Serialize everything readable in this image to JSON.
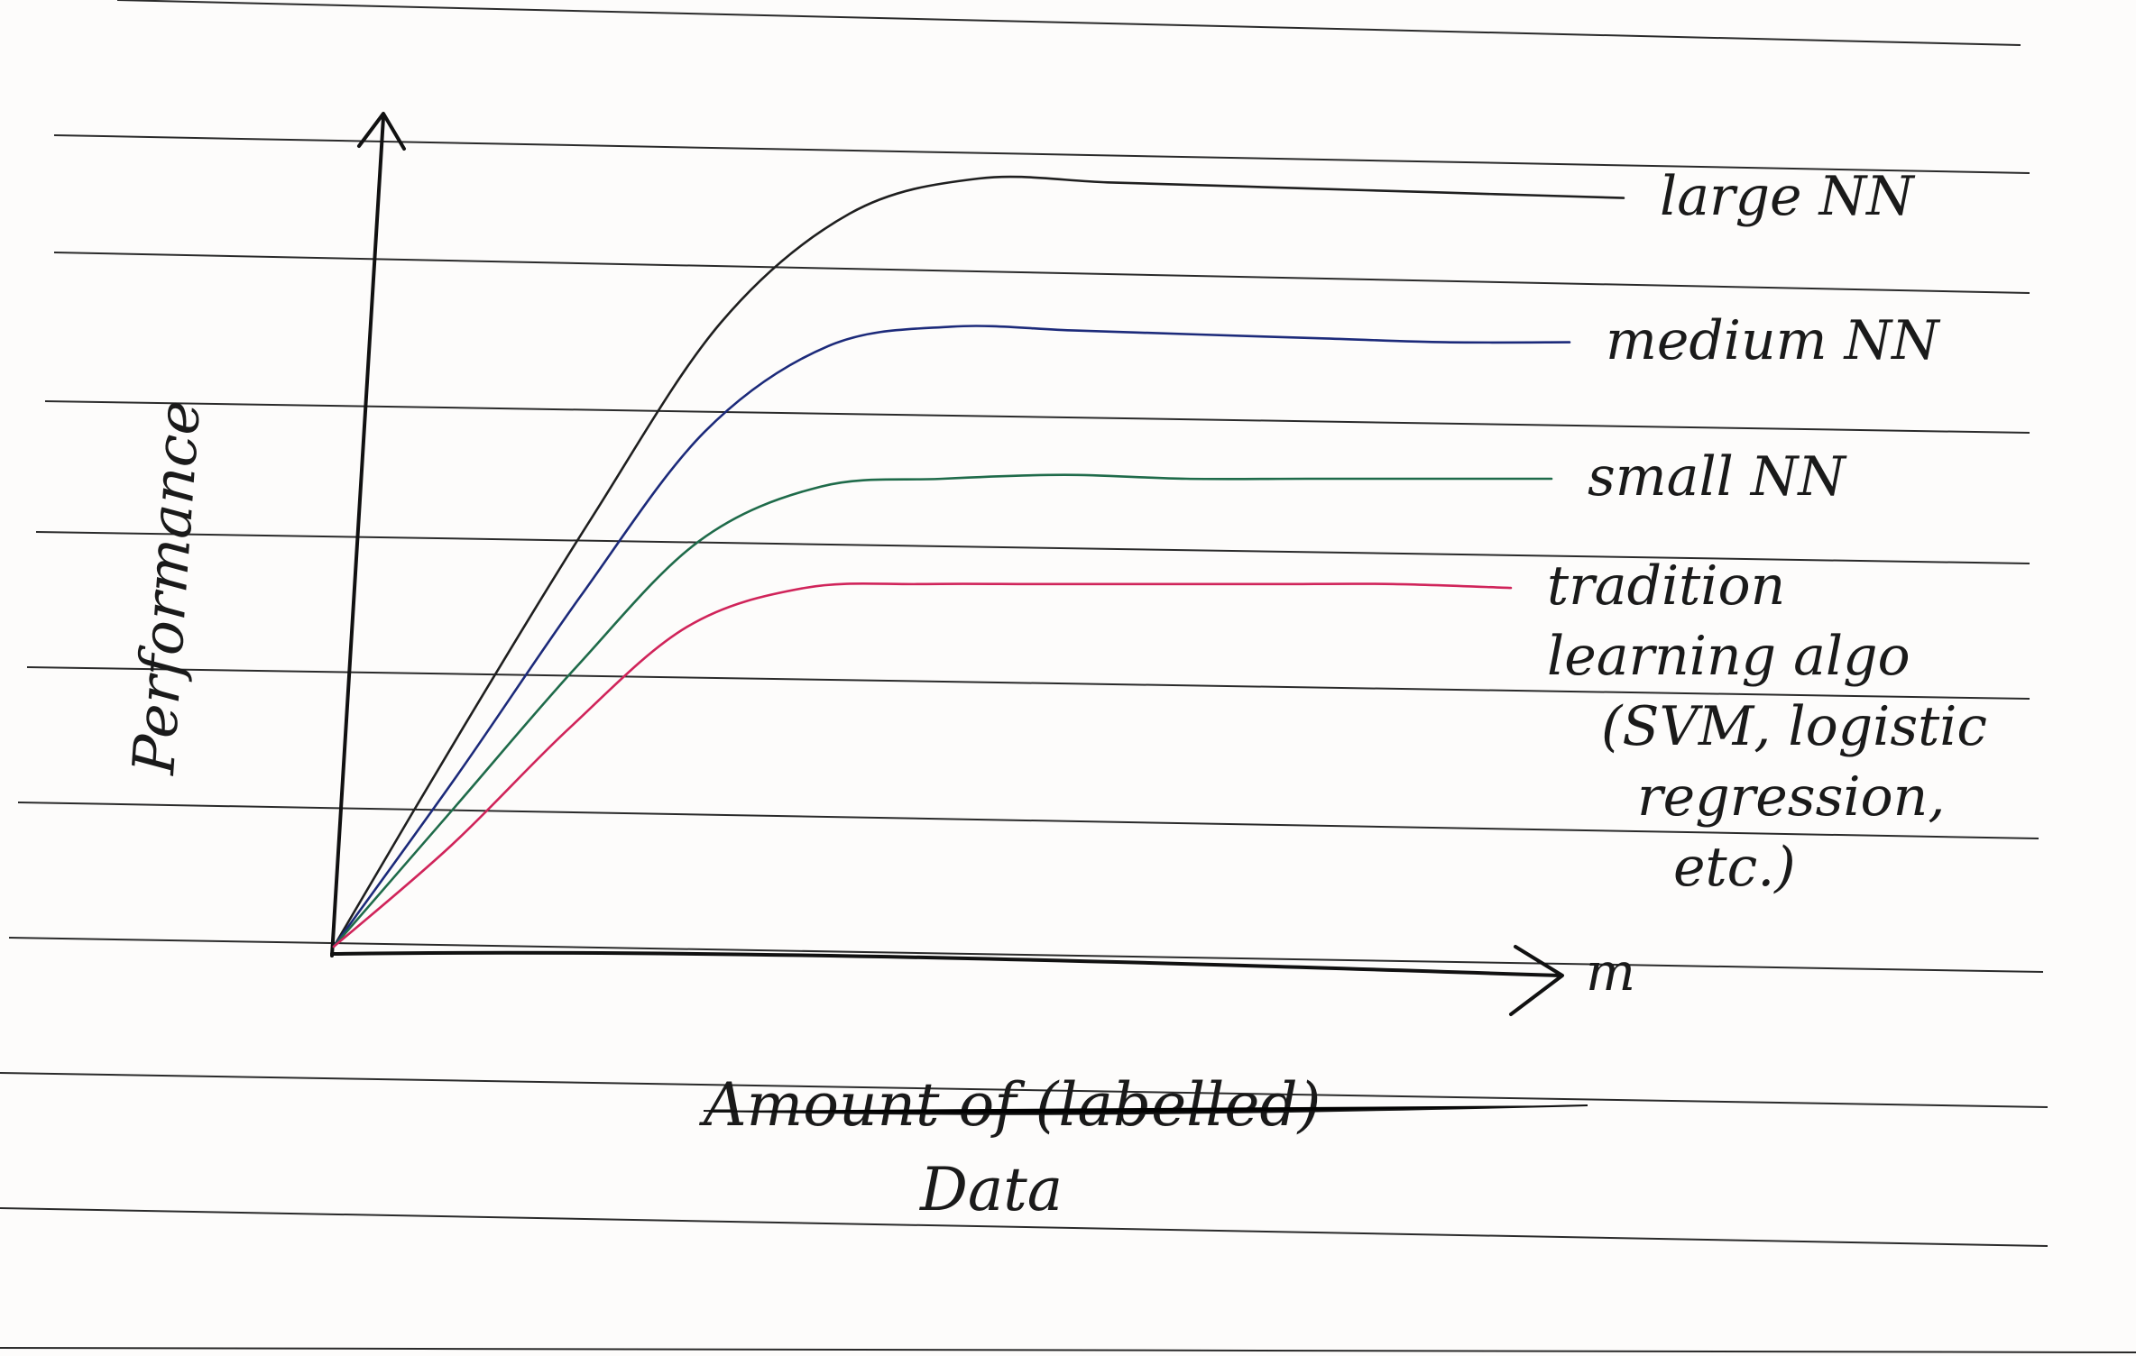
{
  "chart_data": {
    "type": "line",
    "title": "",
    "xlabel_line1": "Amount of (labelled)",
    "xlabel_line2": "Data",
    "ylabel": "Performance",
    "x_axis_end_label": "m",
    "grid": false,
    "legend": "inline-right",
    "x": [
      0,
      0.1,
      0.2,
      0.3,
      0.4,
      0.5,
      0.6,
      0.7,
      0.8,
      0.9,
      1.0
    ],
    "series": [
      {
        "name": "large NN",
        "color": "#1f1f1f",
        "values": [
          0,
          0.28,
          0.55,
          0.8,
          0.94,
          0.985,
          0.98,
          0.975,
          0.97,
          0.965,
          0.96
        ]
      },
      {
        "name": "medium NN",
        "color": "#1c2a7a",
        "values": [
          0,
          0.22,
          0.45,
          0.66,
          0.77,
          0.795,
          0.79,
          0.785,
          0.78,
          0.775,
          0.775
        ]
      },
      {
        "name": "small NN",
        "color": "#1f6b4a",
        "values": [
          0,
          0.18,
          0.36,
          0.52,
          0.59,
          0.6,
          0.605,
          0.6,
          0.6,
          0.6,
          0.6
        ]
      },
      {
        "name": "tradition learning algo",
        "label_lines": [
          "tradition",
          "learning algo",
          "(SVM, logistic",
          "regression,",
          "etc.)"
        ],
        "color": "#d0245a",
        "values": [
          0,
          0.13,
          0.28,
          0.41,
          0.46,
          0.465,
          0.465,
          0.465,
          0.465,
          0.465,
          0.46
        ]
      }
    ]
  }
}
